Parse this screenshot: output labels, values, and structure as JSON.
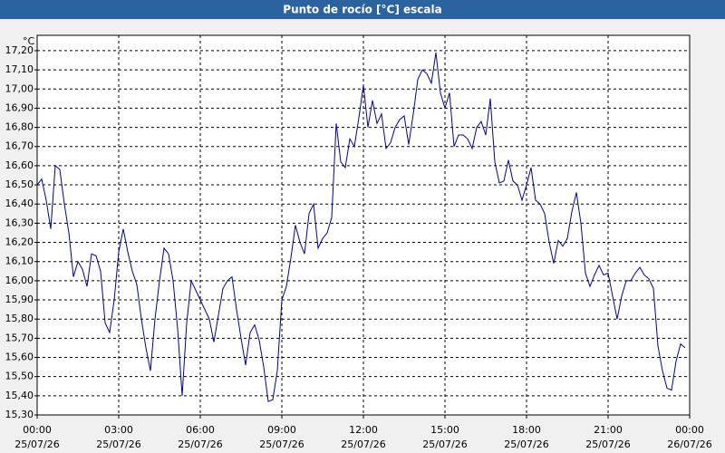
{
  "chart_data": {
    "type": "line",
    "title": "Punto de rocío [°C] escala",
    "ylabel": "°C",
    "x": [
      0,
      10,
      20,
      30,
      40,
      50,
      60,
      70,
      80,
      90,
      100,
      110,
      120,
      130,
      140,
      150,
      160,
      170,
      180,
      190,
      200,
      210,
      220,
      230,
      240,
      250,
      260,
      270,
      280,
      290,
      300,
      310,
      320,
      330,
      340,
      350,
      360,
      370,
      380,
      390,
      400,
      410,
      420,
      430,
      440,
      450,
      460,
      470,
      480,
      490,
      500,
      510,
      520,
      530,
      540,
      550,
      560,
      570,
      580,
      590,
      600,
      610,
      620,
      630,
      640,
      650,
      660,
      670,
      680,
      690,
      700,
      710,
      720,
      730,
      740,
      750,
      760,
      770,
      780,
      790,
      800,
      810,
      820,
      830,
      840,
      850,
      860,
      870,
      880,
      890,
      900,
      910,
      920,
      930,
      940,
      950,
      960,
      970,
      980,
      990,
      1000,
      1010,
      1020,
      1030,
      1040,
      1050,
      1060,
      1070,
      1080,
      1090,
      1100,
      1110,
      1120,
      1130,
      1140,
      1150,
      1160,
      1170,
      1180,
      1190,
      1200,
      1210,
      1220,
      1230,
      1240,
      1250,
      1260,
      1270,
      1280,
      1290,
      1300,
      1310,
      1320,
      1330,
      1340,
      1350,
      1360,
      1370,
      1380,
      1390,
      1400,
      1410,
      1420,
      1430
    ],
    "series": [
      {
        "name": "Punto de rocío",
        "color": "#0000a0",
        "values": [
          16.5,
          16.53,
          16.42,
          16.27,
          16.6,
          16.58,
          16.4,
          16.25,
          16.02,
          16.1,
          16.06,
          15.97,
          16.14,
          16.13,
          16.05,
          15.78,
          15.73,
          15.9,
          16.15,
          16.27,
          16.15,
          16.05,
          15.98,
          15.8,
          15.65,
          15.53,
          15.8,
          16.0,
          16.17,
          16.14,
          16.0,
          15.75,
          15.4,
          15.78,
          16.0,
          15.95,
          15.9,
          15.85,
          15.8,
          15.68,
          15.82,
          15.96,
          16.0,
          16.02,
          15.85,
          15.7,
          15.56,
          15.73,
          15.77,
          15.69,
          15.55,
          15.37,
          15.38,
          15.53,
          15.9,
          15.97,
          16.12,
          16.29,
          16.2,
          16.14,
          16.35,
          16.4,
          16.17,
          16.22,
          16.25,
          16.33,
          16.82,
          16.62,
          16.59,
          16.74,
          16.7,
          16.85,
          17.02,
          16.8,
          16.94,
          16.82,
          16.87,
          16.69,
          16.72,
          16.8,
          16.84,
          16.86,
          16.71,
          16.87,
          17.05,
          17.1,
          17.08,
          17.03,
          17.19,
          16.98,
          16.9,
          16.98,
          16.7,
          16.76,
          16.76,
          16.74,
          16.69,
          16.8,
          16.83,
          16.76,
          16.95,
          16.62,
          16.51,
          16.52,
          16.63,
          16.52,
          16.5,
          16.42,
          16.5,
          16.59,
          16.42,
          16.4,
          16.35,
          16.2,
          16.09,
          16.21,
          16.18,
          16.22,
          16.36,
          16.46,
          16.3,
          16.04,
          15.97,
          16.03,
          16.08,
          16.03,
          16.04,
          15.92,
          15.8,
          15.92,
          16.0,
          16.0,
          16.04,
          16.07,
          16.03,
          16.01,
          15.96,
          15.66,
          15.53,
          15.44,
          15.43,
          15.58,
          15.67,
          15.65
        ]
      }
    ],
    "xlim": [
      0,
      1440
    ],
    "xticks": [
      {
        "value": 0,
        "label": "00:00"
      },
      {
        "value": 180,
        "label": "03:00"
      },
      {
        "value": 360,
        "label": "06:00"
      },
      {
        "value": 540,
        "label": "09:00"
      },
      {
        "value": 720,
        "label": "12:00"
      },
      {
        "value": 900,
        "label": "15:00"
      },
      {
        "value": 1080,
        "label": "18:00"
      },
      {
        "value": 1260,
        "label": "21:00"
      },
      {
        "value": 1440,
        "label": "00:00"
      }
    ],
    "xtick_dates": [
      "25/07/26",
      "25/07/26",
      "25/07/26",
      "25/07/26",
      "25/07/26",
      "25/07/26",
      "25/07/26",
      "25/07/26",
      "26/07/26"
    ],
    "ylim": [
      15.3,
      17.28
    ],
    "yticks": [
      {
        "value": 15.3,
        "label": "15,30"
      },
      {
        "value": 15.4,
        "label": "15,40"
      },
      {
        "value": 15.5,
        "label": "15,50"
      },
      {
        "value": 15.6,
        "label": "15,60"
      },
      {
        "value": 15.7,
        "label": "15,70"
      },
      {
        "value": 15.8,
        "label": "15,80"
      },
      {
        "value": 15.9,
        "label": "15,90"
      },
      {
        "value": 16,
        "label": "16,00"
      },
      {
        "value": 16.1,
        "label": "16,10"
      },
      {
        "value": 16.2,
        "label": "16,20"
      },
      {
        "value": 16.3,
        "label": "16,30"
      },
      {
        "value": 16.4,
        "label": "16,40"
      },
      {
        "value": 16.5,
        "label": "16,50"
      },
      {
        "value": 16.6,
        "label": "16,60"
      },
      {
        "value": 16.7,
        "label": "16,70"
      },
      {
        "value": 16.8,
        "label": "16,80"
      },
      {
        "value": 16.9,
        "label": "16,90"
      },
      {
        "value": 17,
        "label": "17,00"
      },
      {
        "value": 17.1,
        "label": "17,10"
      },
      {
        "value": 17.2,
        "label": "17,20"
      }
    ],
    "grid": true
  }
}
